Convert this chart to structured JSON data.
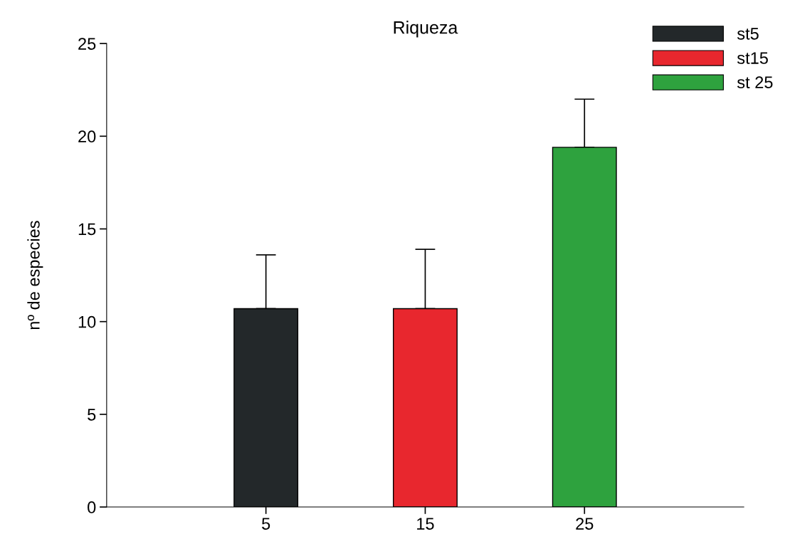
{
  "chart_data": {
    "type": "bar",
    "title": "Riqueza",
    "ylabel": "nº de especies",
    "xlim": [
      -5,
      35
    ],
    "xticks": [
      5,
      15,
      25
    ],
    "ylim": [
      0,
      25
    ],
    "yticks": [
      0,
      5,
      10,
      15,
      20,
      25
    ],
    "series": [
      {
        "name": "st5",
        "color": "#23282a",
        "x": [
          5
        ],
        "values": [
          10.7
        ],
        "errors": [
          [
            10.7,
            13.6
          ]
        ]
      },
      {
        "name": "st15",
        "color": "#e8272e",
        "x": [
          15
        ],
        "values": [
          10.7
        ],
        "errors": [
          [
            10.7,
            13.9
          ]
        ]
      },
      {
        "name": "st 25",
        "color": "#2ea23e",
        "x": [
          25
        ],
        "values": [
          19.4
        ],
        "errors": [
          [
            19.4,
            22.0
          ]
        ]
      }
    ],
    "legend": "top right",
    "grid": false
  }
}
